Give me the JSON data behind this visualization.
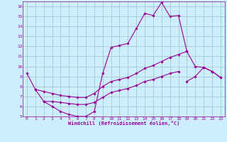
{
  "xlabel": "Windchill (Refroidissement éolien,°C)",
  "bg_color": "#cceeff",
  "grid_color": "#aacccc",
  "line_color": "#990099",
  "xlim": [
    -0.5,
    23.5
  ],
  "ylim": [
    5,
    16.5
  ],
  "xticks": [
    0,
    1,
    2,
    3,
    4,
    5,
    6,
    7,
    8,
    9,
    10,
    11,
    12,
    13,
    14,
    15,
    16,
    17,
    18,
    19,
    20,
    21,
    22,
    23
  ],
  "yticks": [
    5,
    6,
    7,
    8,
    9,
    10,
    11,
    12,
    13,
    14,
    15,
    16
  ],
  "line1_x": [
    0,
    1,
    2,
    3,
    4,
    5,
    6,
    7,
    8,
    9,
    10,
    11,
    12,
    13,
    14,
    15,
    16,
    17,
    18,
    19,
    20,
    21,
    22,
    23
  ],
  "line1_y": [
    9.3,
    7.7,
    6.5,
    6.0,
    5.5,
    5.2,
    5.0,
    5.0,
    5.5,
    9.3,
    11.9,
    12.1,
    12.3,
    13.8,
    15.3,
    15.1,
    16.4,
    15.0,
    15.1,
    11.5,
    10.0,
    9.9,
    9.5,
    8.9
  ],
  "line2_x": [
    1,
    2,
    3,
    4,
    5,
    6,
    7,
    8,
    9,
    10,
    11,
    12,
    13,
    14,
    15,
    16,
    17,
    18,
    19
  ],
  "line2_y": [
    7.7,
    7.5,
    7.3,
    7.1,
    7.0,
    6.9,
    6.9,
    7.3,
    8.0,
    8.5,
    8.7,
    8.9,
    9.3,
    9.8,
    10.1,
    10.5,
    10.9,
    11.2,
    11.5
  ],
  "line3_x": [
    2,
    3,
    4,
    5,
    6,
    7,
    8,
    9,
    10,
    11,
    12,
    13,
    14,
    15,
    16,
    17,
    18
  ],
  "line3_y": [
    6.5,
    6.5,
    6.4,
    6.3,
    6.2,
    6.2,
    6.4,
    6.9,
    7.4,
    7.6,
    7.8,
    8.1,
    8.5,
    8.7,
    9.0,
    9.3,
    9.5
  ],
  "line4_x": [
    19,
    20,
    21,
    22,
    23
  ],
  "line4_y": [
    8.5,
    9.0,
    9.9,
    9.5,
    8.9
  ]
}
